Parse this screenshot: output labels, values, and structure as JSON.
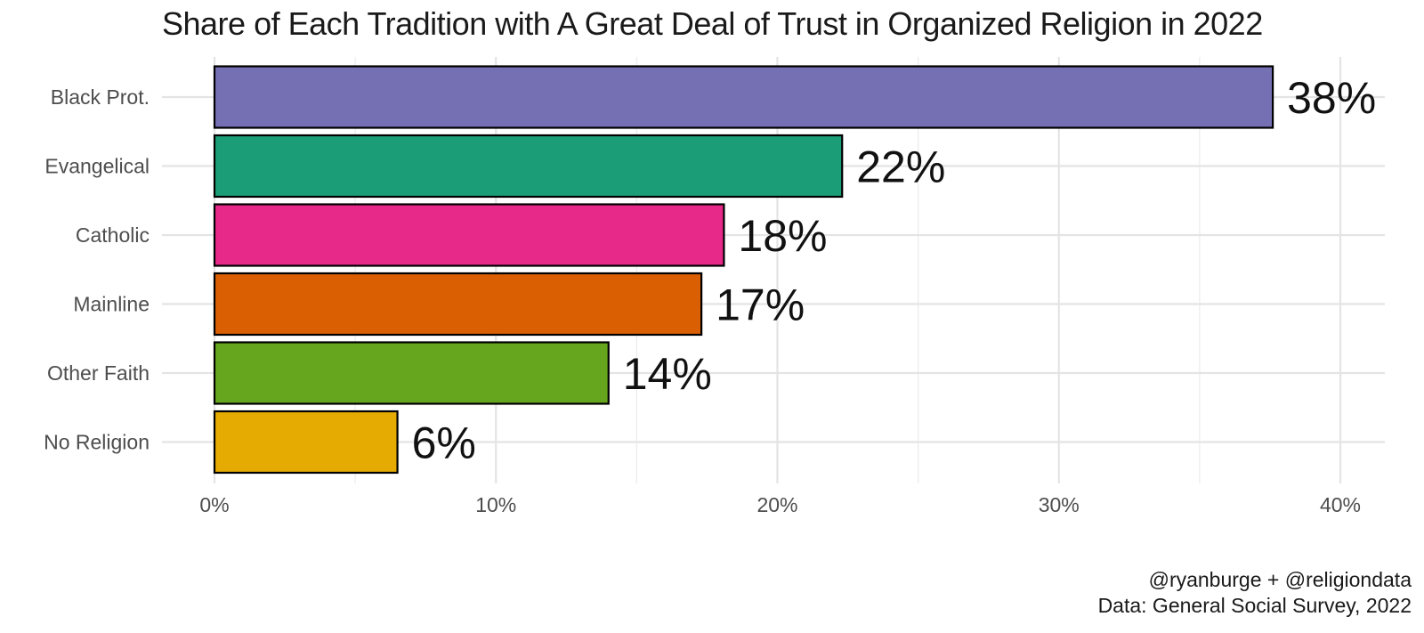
{
  "chart_data": {
    "type": "bar",
    "orientation": "horizontal",
    "title": "Share of Each Tradition with A Great Deal of Trust in Organized Religion in 2022",
    "categories": [
      "Black Prot.",
      "Evangelical",
      "Catholic",
      "Mainline",
      "Other Faith",
      "No Religion"
    ],
    "values": [
      37.6,
      22.3,
      18.1,
      17.3,
      14.0,
      6.5
    ],
    "data_labels": [
      "38%",
      "22%",
      "18%",
      "17%",
      "14%",
      "6%"
    ],
    "colors": [
      "#7570b3",
      "#1b9e77",
      "#e7298a",
      "#d95f02",
      "#66a61e",
      "#e6ab02"
    ],
    "xlim": [
      0,
      40
    ],
    "x_ticks": [
      0,
      10,
      20,
      30,
      40
    ],
    "x_tick_labels": [
      "0%",
      "10%",
      "20%",
      "30%",
      "40%"
    ],
    "xlabel": "",
    "ylabel": "",
    "grid": true,
    "legend": "none"
  },
  "caption": {
    "line1": "@ryanburge + @religiondata",
    "line2": "Data: General Social Survey, 2022"
  }
}
